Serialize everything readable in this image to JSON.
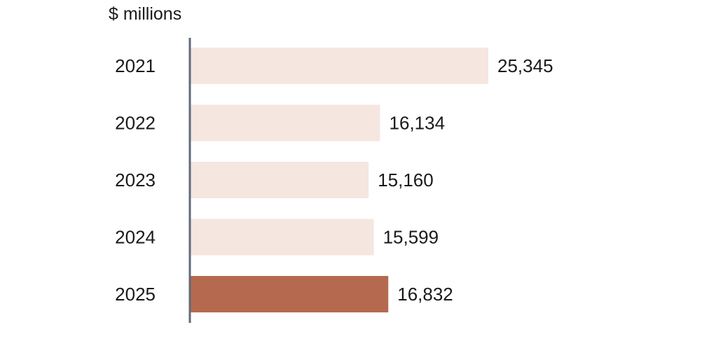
{
  "chart_data": {
    "type": "bar",
    "orientation": "horizontal",
    "title": "$ millions",
    "categories": [
      "2021",
      "2022",
      "2023",
      "2024",
      "2025"
    ],
    "values": [
      25345,
      16134,
      15160,
      15599,
      16832
    ],
    "value_labels": [
      "25,345",
      "16,134",
      "15,160",
      "15,599",
      "16,832"
    ],
    "highlight_index": 4,
    "xlim": [
      0,
      25345
    ],
    "grid": false,
    "colors": {
      "bar": "#f5e6e0",
      "highlight": "#b56a4f",
      "axis": "#5f6b7a"
    }
  }
}
